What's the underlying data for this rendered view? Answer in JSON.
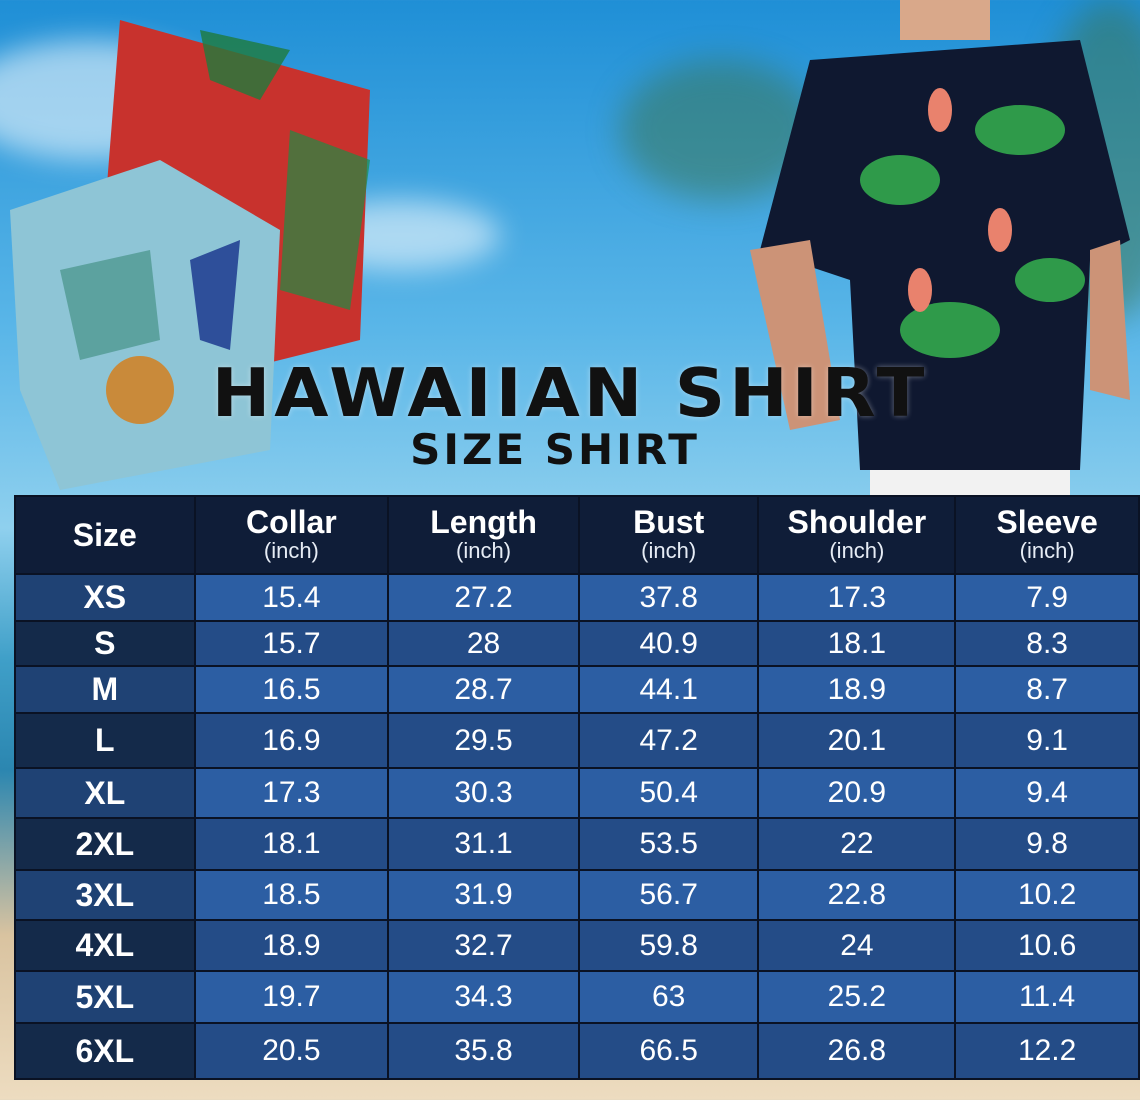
{
  "header": {
    "title": "HAWAIIAN SHIRT",
    "subtitle": "SIZE SHIRT"
  },
  "colors": {
    "header_bg": "#0f1d38",
    "row_light": "#2c5ea3",
    "row_dark": "#244c87",
    "title": "#111111"
  },
  "table": {
    "columns": [
      {
        "label": "Size",
        "unit": ""
      },
      {
        "label": "Collar",
        "unit": "(inch)"
      },
      {
        "label": "Length",
        "unit": "(inch)"
      },
      {
        "label": "Bust",
        "unit": "(inch)"
      },
      {
        "label": "Shoulder",
        "unit": "(inch)"
      },
      {
        "label": "Sleeve",
        "unit": "(inch)"
      }
    ],
    "rows": [
      [
        "XS",
        "15.4",
        "27.2",
        "37.8",
        "17.3",
        "7.9"
      ],
      [
        "S",
        "15.7",
        "28",
        "40.9",
        "18.1",
        "8.3"
      ],
      [
        "M",
        "16.5",
        "28.7",
        "44.1",
        "18.9",
        "8.7"
      ],
      [
        "L",
        "16.9",
        "29.5",
        "47.2",
        "20.1",
        "9.1"
      ],
      [
        "XL",
        "17.3",
        "30.3",
        "50.4",
        "20.9",
        "9.4"
      ],
      [
        "2XL",
        "18.1",
        "31.1",
        "53.5",
        "22",
        "9.8"
      ],
      [
        "3XL",
        "18.5",
        "31.9",
        "56.7",
        "22.8",
        "10.2"
      ],
      [
        "4XL",
        "18.9",
        "32.7",
        "59.8",
        "24",
        "10.6"
      ],
      [
        "5XL",
        "19.7",
        "34.3",
        "63",
        "25.2",
        "11.4"
      ],
      [
        "6XL",
        "20.5",
        "35.8",
        "66.5",
        "26.8",
        "12.2"
      ]
    ]
  }
}
